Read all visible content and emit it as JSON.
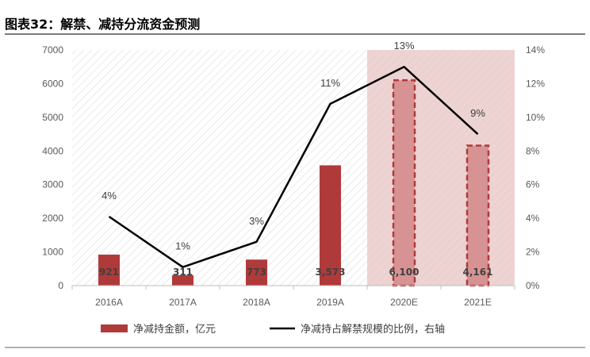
{
  "figure_title": "图表32：解禁、减持分流资金预测",
  "chart_data": {
    "type": "bar",
    "categories": [
      "2016A",
      "2017A",
      "2018A",
      "2019A",
      "2020E",
      "2021E"
    ],
    "series": [
      {
        "name": "净减持金额，亿元",
        "type": "bar",
        "axis": "left",
        "values": [
          921,
          311,
          773,
          3573,
          6100,
          4161
        ],
        "labels": [
          "921",
          "311",
          "773",
          "3,573",
          "6,100",
          "4,161"
        ],
        "color": "#b03a3a"
      },
      {
        "name": "净减持占解禁规模的比例，右轴",
        "type": "line",
        "axis": "right",
        "values": [
          4.1,
          1.1,
          2.6,
          10.8,
          13.0,
          9.0
        ],
        "labels": [
          "4%",
          "1%",
          "3%",
          "11%",
          "13%",
          "9%"
        ],
        "color": "#000000"
      }
    ],
    "y_left": {
      "ylim": [
        0,
        7000
      ],
      "ticks": [
        "0",
        "1000",
        "2000",
        "3000",
        "4000",
        "5000",
        "6000",
        "7000"
      ]
    },
    "y_right": {
      "ylim": [
        0,
        14
      ],
      "ticks": [
        "0%",
        "2%",
        "4%",
        "6%",
        "8%",
        "10%",
        "12%",
        "14%"
      ]
    },
    "estimate_categories": [
      "2020E",
      "2021E"
    ],
    "estimate_shade_color": "#e8c4c4",
    "grid": false,
    "legend_position": "bottom"
  }
}
